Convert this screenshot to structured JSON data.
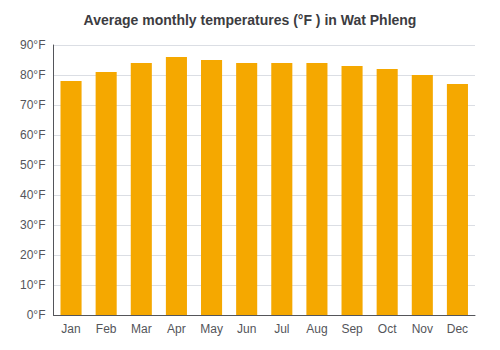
{
  "chart_data": {
    "type": "bar",
    "title": "Average monthly temperatures (°F ) in Wat Phleng",
    "categories": [
      "Jan",
      "Feb",
      "Mar",
      "Apr",
      "May",
      "Jun",
      "Jul",
      "Aug",
      "Sep",
      "Oct",
      "Nov",
      "Dec"
    ],
    "values": [
      78,
      81,
      84,
      86,
      85,
      84,
      84,
      84,
      83,
      82,
      80,
      77
    ],
    "color": "#F5A800",
    "ylim": [
      0,
      90
    ],
    "yticks": [
      {
        "value": 0,
        "label": "0°F"
      },
      {
        "value": 10,
        "label": "10°F"
      },
      {
        "value": 20,
        "label": "20°F"
      },
      {
        "value": 30,
        "label": "30°F"
      },
      {
        "value": 40,
        "label": "40°F"
      },
      {
        "value": 50,
        "label": "50°F"
      },
      {
        "value": 60,
        "label": "60°F"
      },
      {
        "value": 70,
        "label": "70°F"
      },
      {
        "value": 80,
        "label": "80°F"
      },
      {
        "value": 90,
        "label": "90°F"
      }
    ],
    "grid": true
  }
}
